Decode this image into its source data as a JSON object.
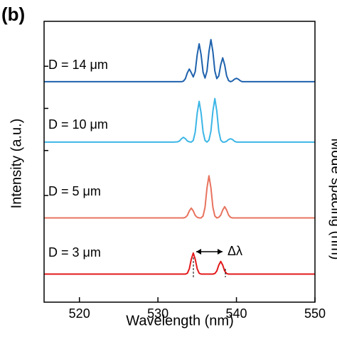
{
  "chart_data": {
    "type": "line",
    "panel_label": "(b)",
    "x_label": "Wavelength (nm)",
    "y_label": "Intensity (a.u.)",
    "y2_label": "Mode spacing (nm)",
    "annotation": "Δλ",
    "xlim": [
      515.5,
      550
    ],
    "xticks": [
      520,
      530,
      540,
      550
    ],
    "ylim": [
      0,
      10
    ],
    "yticks": [
      3.8,
      5.4,
      6.9,
      8.4
    ],
    "x": [
      515.5,
      520,
      525,
      530,
      532,
      532.5,
      532.75,
      533,
      533.25,
      533.5,
      533.75,
      534,
      534.25,
      534.5,
      534.75,
      535,
      535.25,
      535.5,
      535.75,
      536,
      536.25,
      536.5,
      536.75,
      537,
      537.25,
      537.5,
      537.75,
      538,
      538.25,
      538.5,
      538.75,
      539,
      539.25,
      539.5,
      539.75,
      540,
      540.25,
      540.5,
      540.75,
      541,
      542,
      545,
      550
    ],
    "series": [
      {
        "name": "D = 14 μm",
        "color": "#1f62ad",
        "values": [
          7.85,
          7.85,
          7.85,
          7.85,
          7.85,
          7.85,
          7.85,
          7.85,
          7.87,
          7.96,
          8.17,
          8.3,
          8.17,
          8.02,
          8.21,
          8.81,
          9.2,
          8.81,
          8.19,
          7.98,
          8.23,
          8.92,
          9.35,
          8.92,
          8.23,
          7.96,
          8.06,
          8.45,
          8.7,
          8.45,
          8.06,
          7.89,
          7.85,
          7.88,
          7.94,
          7.97,
          7.94,
          7.88,
          7.85,
          7.85,
          7.85,
          7.85,
          7.85
        ]
      },
      {
        "name": "D = 10 μm",
        "color": "#3cb6e6",
        "values": [
          5.7,
          5.7,
          5.7,
          5.7,
          5.7,
          5.71,
          5.74,
          5.82,
          5.87,
          5.82,
          5.74,
          5.71,
          5.7,
          5.76,
          6.06,
          6.73,
          7.15,
          6.73,
          6.06,
          5.76,
          5.7,
          5.77,
          6.09,
          6.8,
          7.25,
          6.8,
          6.09,
          5.77,
          5.7,
          5.7,
          5.73,
          5.79,
          5.82,
          5.79,
          5.73,
          5.7,
          5.7,
          5.7,
          5.7,
          5.7,
          5.7,
          5.7,
          5.7
        ]
      },
      {
        "name": "D = 5 μm",
        "color": "#e8735e",
        "values": [
          3.0,
          3.0,
          3.0,
          3.0,
          3.0,
          3.0,
          3.0,
          3.0,
          3.0,
          3.02,
          3.09,
          3.25,
          3.35,
          3.25,
          3.09,
          3.02,
          3.0,
          3.0,
          3.07,
          3.38,
          4.07,
          4.5,
          4.07,
          3.38,
          3.07,
          3.0,
          3.02,
          3.1,
          3.28,
          3.4,
          3.28,
          3.1,
          3.02,
          3.0,
          3.0,
          3.0,
          3.0,
          3.0,
          3.0,
          3.0,
          3.0,
          3.0,
          3.0
        ]
      },
      {
        "name": "D = 3 μm",
        "color": "#e31a1c",
        "values": [
          1.0,
          1.0,
          1.0,
          1.0,
          1.0,
          1.0,
          1.0,
          1.0,
          1.0,
          1.0,
          1.03,
          1.19,
          1.53,
          1.75,
          1.53,
          1.19,
          1.03,
          1.0,
          1.0,
          1.0,
          1.0,
          1.0,
          1.0,
          1.0,
          1.02,
          1.11,
          1.32,
          1.45,
          1.32,
          1.11,
          1.02,
          1.0,
          1.0,
          1.0,
          1.0,
          1.0,
          1.0,
          1.0,
          1.0,
          1.0,
          1.0,
          1.0,
          1.0
        ]
      }
    ]
  }
}
